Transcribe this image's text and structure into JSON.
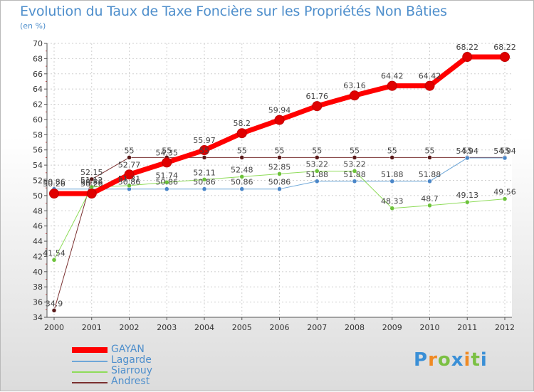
{
  "title": "Evolution du Taux de Taxe Foncière sur les Propriétés Non Bâties",
  "unit_label": "(en %)",
  "logo": {
    "text": "Proxiti",
    "letters": [
      "P",
      "r",
      "o",
      "x",
      "i",
      "t",
      "i"
    ],
    "colors": [
      "#3a8fd6",
      "#f08a24",
      "#7bc043",
      "#3a8fd6",
      "#f08a24",
      "#7bc043",
      "#3a8fd6"
    ]
  },
  "chart_data": {
    "type": "line",
    "title": "Evolution du Taux de Taxe Foncière sur les Propriétés Non Bâties",
    "ylabel": "(en %)",
    "xlabel": "",
    "x": [
      "2000",
      "2001",
      "2002",
      "2003",
      "2004",
      "2005",
      "2006",
      "2007",
      "2008",
      "2009",
      "2010",
      "2011",
      "2012"
    ],
    "ylim": [
      34,
      70
    ],
    "yticks": [
      34,
      36,
      38,
      40,
      42,
      44,
      46,
      48,
      50,
      52,
      54,
      56,
      58,
      60,
      62,
      64,
      66,
      68,
      70
    ],
    "grid": true,
    "series": [
      {
        "name": "GAYAN",
        "color": "#ff0000",
        "width": 7,
        "marker_color": "#e00000",
        "values": [
          50.26,
          50.26,
          52.77,
          54.35,
          55.97,
          58.2,
          59.94,
          61.76,
          63.16,
          64.42,
          64.42,
          68.22,
          68.22
        ],
        "labels": [
          "50.26",
          "50.26",
          "52.77",
          "54.35",
          "55.97",
          "58.2",
          "59.94",
          "61.76",
          "63.16",
          "64.42",
          "64.42",
          "68.22",
          "68.22"
        ]
      },
      {
        "name": "Lagarde",
        "color": "#6ea7d8",
        "width": 1,
        "marker_color": "#4a86c8",
        "values": [
          50.86,
          50.86,
          50.86,
          50.86,
          50.86,
          50.86,
          50.86,
          51.88,
          51.88,
          51.88,
          51.88,
          54.94,
          54.94
        ],
        "labels": [
          "50.86",
          "50.86",
          "50.86",
          "50.86",
          "50.86",
          "50.86",
          "50.86",
          "51.88",
          "51.88",
          "51.88",
          "51.88",
          "54.94",
          "54.94"
        ]
      },
      {
        "name": "Siarrouy",
        "color": "#8fdc5a",
        "width": 1,
        "marker_color": "#6cc23a",
        "values": [
          41.54,
          51.12,
          51.31,
          51.74,
          52.11,
          52.48,
          52.85,
          53.22,
          53.22,
          48.33,
          48.7,
          49.13,
          49.56
        ],
        "labels": [
          "41.54",
          "51.12",
          "51.31",
          "51.74",
          "52.11",
          "52.48",
          "52.85",
          "53.22",
          "53.22",
          "48.33",
          "48.7",
          "49.13",
          "49.56"
        ]
      },
      {
        "name": "Andrest",
        "color": "#7a3030",
        "width": 1,
        "marker_color": "#5a1a1a",
        "values": [
          34.9,
          52.15,
          55,
          55,
          55,
          55,
          55,
          55,
          55,
          55,
          55,
          55,
          55
        ],
        "labels": [
          "34.9",
          "52.15",
          "55",
          "55",
          "55",
          "55",
          "55",
          "55",
          "55",
          "55",
          "55",
          "55",
          "55"
        ]
      }
    ]
  }
}
